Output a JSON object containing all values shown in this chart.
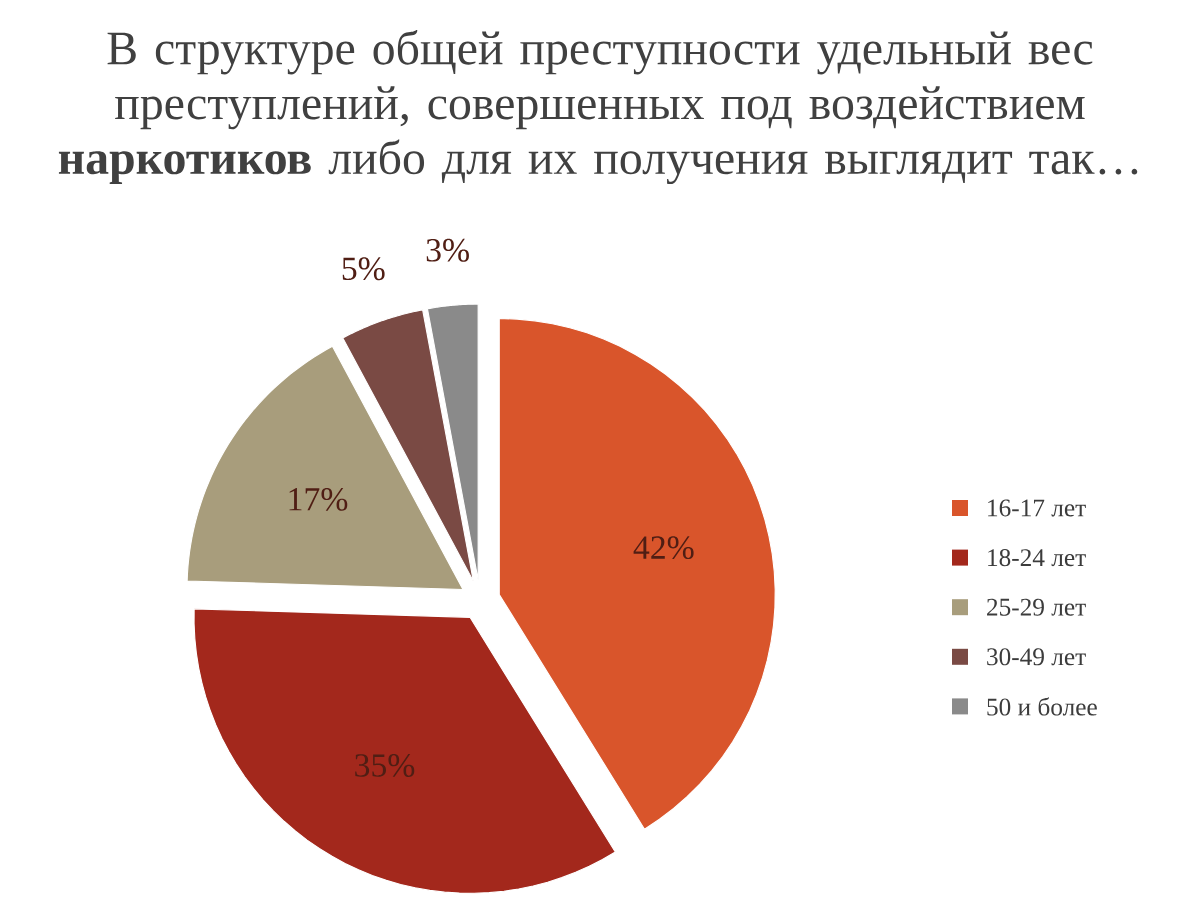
{
  "chart_data": {
    "type": "pie",
    "title": "В структуре общей преступности удельный вес преступлений, совершенных под воздействием **наркотиков** либо для их получения выглядит так…",
    "categories": [
      "16-17 лет",
      "18-24 лет",
      "25-29 лет",
      "30-49 лет",
      "50 и более"
    ],
    "values": [
      42,
      35,
      17,
      5,
      3
    ],
    "colors": [
      "#d9552b",
      "#a3281c",
      "#a89d7c",
      "#7a4a44",
      "#8a8a8a"
    ],
    "value_labels": [
      "42%",
      "35%",
      "17%",
      "5%",
      "3%"
    ],
    "legend": "right"
  }
}
